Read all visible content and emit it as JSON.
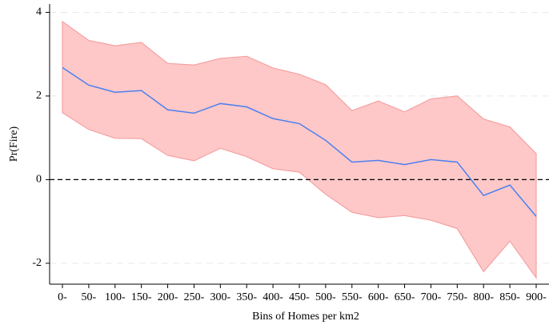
{
  "chart_data": {
    "type": "line",
    "x_label": "Bins of Homes per km2",
    "y_label": "Pr(Fire)",
    "categories": [
      "0-",
      "50-",
      "100-",
      "150-",
      "200-",
      "250-",
      "300-",
      "350-",
      "400-",
      "450-",
      "500-",
      "550-",
      "600-",
      "650-",
      "700-",
      "750-",
      "800-",
      "850-",
      "900-"
    ],
    "values": [
      2.68,
      2.26,
      2.09,
      2.13,
      1.67,
      1.59,
      1.82,
      1.74,
      1.46,
      1.34,
      0.94,
      0.42,
      0.46,
      0.36,
      0.48,
      0.42,
      -0.38,
      -0.13,
      -0.88
    ],
    "upper": [
      3.78,
      3.33,
      3.2,
      3.28,
      2.78,
      2.74,
      2.9,
      2.95,
      2.67,
      2.52,
      2.27,
      1.65,
      1.88,
      1.62,
      1.93,
      2.0,
      1.45,
      1.26,
      0.62
    ],
    "lower": [
      1.6,
      1.2,
      0.99,
      0.98,
      0.58,
      0.45,
      0.75,
      0.55,
      0.26,
      0.18,
      -0.35,
      -0.78,
      -0.91,
      -0.86,
      -0.97,
      -1.17,
      -2.2,
      -1.47,
      -2.35
    ],
    "color": "#4a7ff0",
    "band_color": "#ffc8c8",
    "band_edge_color": "#f4a0a0",
    "reference_line": 0,
    "ylim": [
      -2.5,
      4.2
    ],
    "yticks": [
      -2,
      0,
      2,
      4
    ],
    "grid": true
  }
}
